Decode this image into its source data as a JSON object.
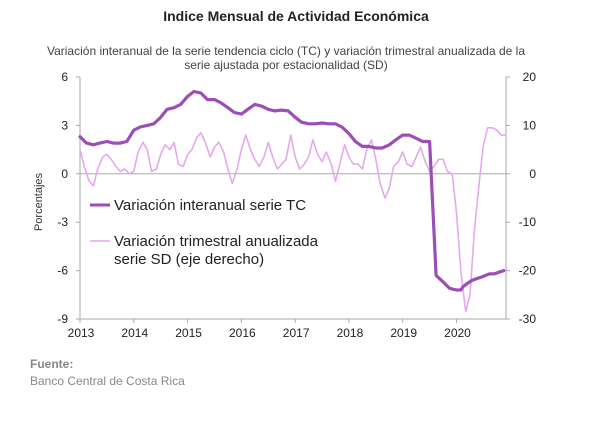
{
  "header": {
    "title": "Indice Mensual de  Actividad Económica",
    "subtitle_line1": "Variación interanual de la serie tendencia ciclo (TC) y variación trimestral anualizada de la",
    "subtitle_line2": "serie ajustada por estacionalidad (SD)"
  },
  "footer": {
    "source_label": "Fuente:",
    "source_value": "Banco Central de Costa Rica"
  },
  "colors": {
    "tc": "#9b4fb6",
    "sd": "#e6a8ef",
    "axis": "#aaaaaa"
  },
  "chart_data": {
    "type": "line",
    "title": "Indice Mensual de  Actividad Económica",
    "subtitle": "Variación interanual de la serie tendencia ciclo (TC) y variación trimestral anualizada de la serie ajustada por estacionalidad (SD)",
    "xlabel": "",
    "ylabel": "Porcentajes",
    "xlim": [
      2013.0,
      2020.92
    ],
    "ylim_left": [
      -9,
      6
    ],
    "ylim_right": [
      -30,
      20
    ],
    "left_ticks": [
      "6",
      "3",
      "0",
      "-3",
      "-6",
      "-9"
    ],
    "right_ticks": [
      "20",
      "10",
      "0",
      "-10",
      "-20",
      "-30"
    ],
    "x_ticks": [
      "2013",
      "2014",
      "2015",
      "2016",
      "2017",
      "2018",
      "2019",
      "2020"
    ],
    "grid": false,
    "legend": {
      "placement": "center-left",
      "entries": [
        "Variación interanual serie TC",
        "Variación trimestral anualizada",
        "serie SD (eje derecho)"
      ]
    },
    "series": [
      {
        "name": "Variación interanual serie TC",
        "axis": "left",
        "x": [
          2013.0,
          2013.12,
          2013.25,
          2013.37,
          2013.5,
          2013.62,
          2013.75,
          2013.87,
          2014.0,
          2014.12,
          2014.25,
          2014.37,
          2014.5,
          2014.62,
          2014.75,
          2014.87,
          2015.0,
          2015.12,
          2015.25,
          2015.37,
          2015.5,
          2015.62,
          2015.75,
          2015.87,
          2016.0,
          2016.12,
          2016.25,
          2016.37,
          2016.5,
          2016.62,
          2016.75,
          2016.87,
          2017.0,
          2017.12,
          2017.25,
          2017.37,
          2017.5,
          2017.62,
          2017.75,
          2017.87,
          2018.0,
          2018.12,
          2018.25,
          2018.37,
          2018.5,
          2018.62,
          2018.75,
          2018.87,
          2019.0,
          2019.12,
          2019.25,
          2019.37,
          2019.5,
          2019.62,
          2019.75,
          2019.87,
          2020.0,
          2020.08,
          2020.12,
          2020.2,
          2020.29,
          2020.37,
          2020.46,
          2020.54,
          2020.62,
          2020.71,
          2020.79,
          2020.88
        ],
        "values": [
          2.3,
          1.9,
          1.8,
          1.9,
          2.0,
          1.9,
          1.9,
          2.0,
          2.7,
          2.9,
          3.0,
          3.1,
          3.5,
          4.0,
          4.1,
          4.3,
          4.8,
          5.1,
          5.0,
          4.6,
          4.6,
          4.4,
          4.1,
          3.8,
          3.7,
          4.0,
          4.3,
          4.2,
          4.0,
          3.9,
          3.95,
          3.9,
          3.5,
          3.2,
          3.1,
          3.1,
          3.15,
          3.1,
          3.1,
          2.9,
          2.5,
          2.0,
          1.7,
          1.7,
          1.6,
          1.6,
          1.8,
          2.1,
          2.4,
          2.4,
          2.2,
          2.0,
          2.0,
          -6.3,
          -6.7,
          -7.1,
          -7.2,
          -7.2,
          -7.0,
          -6.8,
          -6.6,
          -6.5,
          -6.4,
          -6.3,
          -6.2,
          -6.2,
          -6.1,
          -6.0
        ]
      },
      {
        "name": "Variación trimestral anualizada serie SD (eje derecho)",
        "axis": "right",
        "x": [
          2013.0,
          2013.08,
          2013.17,
          2013.25,
          2013.33,
          2013.42,
          2013.5,
          2013.58,
          2013.67,
          2013.75,
          2013.83,
          2013.92,
          2014.0,
          2014.08,
          2014.17,
          2014.25,
          2014.33,
          2014.42,
          2014.5,
          2014.58,
          2014.67,
          2014.75,
          2014.83,
          2014.92,
          2015.0,
          2015.08,
          2015.17,
          2015.25,
          2015.33,
          2015.42,
          2015.5,
          2015.58,
          2015.67,
          2015.75,
          2015.83,
          2015.92,
          2016.0,
          2016.08,
          2016.17,
          2016.25,
          2016.33,
          2016.42,
          2016.5,
          2016.58,
          2016.67,
          2016.75,
          2016.83,
          2016.92,
          2017.0,
          2017.08,
          2017.17,
          2017.25,
          2017.33,
          2017.42,
          2017.5,
          2017.58,
          2017.67,
          2017.75,
          2017.83,
          2017.92,
          2018.0,
          2018.08,
          2018.17,
          2018.25,
          2018.33,
          2018.42,
          2018.5,
          2018.58,
          2018.67,
          2018.75,
          2018.83,
          2018.92,
          2019.0,
          2019.08,
          2019.17,
          2019.25,
          2019.33,
          2019.42,
          2019.5,
          2019.58,
          2019.67,
          2019.75,
          2019.83,
          2019.92,
          2020.0,
          2020.08,
          2020.17,
          2020.25,
          2020.33,
          2020.42,
          2020.5,
          2020.58,
          2020.67,
          2020.75,
          2020.83,
          2020.92
        ],
        "values": [
          5.0,
          1.5,
          -1.5,
          -2.5,
          1.0,
          3.5,
          4.0,
          3.0,
          1.5,
          0.5,
          1.0,
          0.0,
          0.5,
          4.5,
          6.5,
          5.0,
          0.5,
          1.0,
          4.0,
          6.0,
          5.0,
          6.5,
          2.0,
          1.5,
          4.0,
          5.0,
          7.5,
          8.5,
          6.5,
          3.5,
          5.5,
          6.5,
          4.5,
          1.0,
          -2.0,
          1.0,
          5.0,
          8.0,
          5.0,
          3.0,
          1.5,
          3.5,
          6.5,
          3.5,
          1.0,
          2.0,
          3.0,
          8.0,
          3.5,
          1.0,
          2.0,
          3.5,
          7.0,
          4.0,
          2.5,
          4.5,
          2.0,
          -1.5,
          2.0,
          6.0,
          3.5,
          2.0,
          2.0,
          1.0,
          5.0,
          7.0,
          3.0,
          -2.0,
          -5.0,
          -3.0,
          1.5,
          2.5,
          4.5,
          2.0,
          1.5,
          3.5,
          5.5,
          2.5,
          0.5,
          1.5,
          3.0,
          3.0,
          0.5,
          0.0,
          -8.0,
          -20.0,
          -28.5,
          -25.0,
          -12.0,
          -2.0,
          6.0,
          9.5,
          9.5,
          9.0,
          8.0,
          8.0
        ]
      }
    ]
  }
}
